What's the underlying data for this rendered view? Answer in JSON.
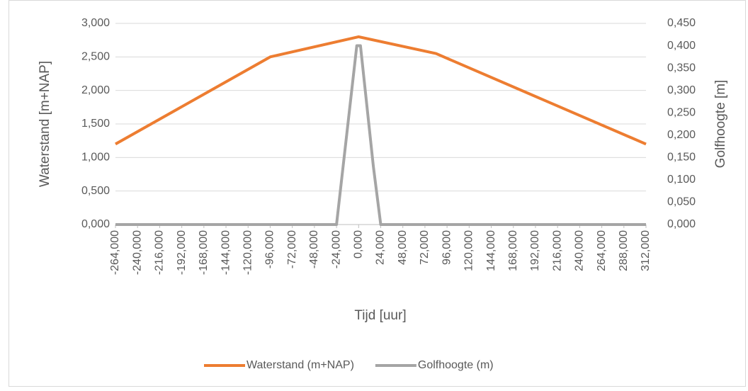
{
  "chart_data": {
    "type": "line",
    "xlabel": "Tijd [uur]",
    "ylabel": "Waterstand [m+NAP]",
    "y2label": "Golfhoogte [m]",
    "xlim": [
      -264,
      312
    ],
    "xticks": [
      {
        "value": -264,
        "label": "-264,000"
      },
      {
        "value": -240,
        "label": "-240,000"
      },
      {
        "value": -216,
        "label": "-216,000"
      },
      {
        "value": -192,
        "label": "-192,000"
      },
      {
        "value": -168,
        "label": "-168,000"
      },
      {
        "value": -144,
        "label": "-144,000"
      },
      {
        "value": -120,
        "label": "-120,000"
      },
      {
        "value": -96,
        "label": "-96,000"
      },
      {
        "value": -72,
        "label": "-72,000"
      },
      {
        "value": -48,
        "label": "-48,000"
      },
      {
        "value": -24,
        "label": "-24,000"
      },
      {
        "value": 0,
        "label": "0,000"
      },
      {
        "value": 24,
        "label": "24,000"
      },
      {
        "value": 48,
        "label": "48,000"
      },
      {
        "value": 72,
        "label": "72,000"
      },
      {
        "value": 96,
        "label": "96,000"
      },
      {
        "value": 120,
        "label": "120,000"
      },
      {
        "value": 144,
        "label": "144,000"
      },
      {
        "value": 168,
        "label": "168,000"
      },
      {
        "value": 192,
        "label": "192,000"
      },
      {
        "value": 216,
        "label": "216,000"
      },
      {
        "value": 240,
        "label": "240,000"
      },
      {
        "value": 264,
        "label": "264,000"
      },
      {
        "value": 288,
        "label": "288,000"
      },
      {
        "value": 312,
        "label": "312,000"
      }
    ],
    "ylim": [
      0,
      3
    ],
    "yticks": [
      {
        "value": 0,
        "label": "0,000"
      },
      {
        "value": 0.5,
        "label": "0,500"
      },
      {
        "value": 1,
        "label": "1,000"
      },
      {
        "value": 1.5,
        "label": "1,500"
      },
      {
        "value": 2,
        "label": "2,000"
      },
      {
        "value": 2.5,
        "label": "2,500"
      },
      {
        "value": 3,
        "label": "3,000"
      }
    ],
    "y2lim": [
      0,
      0.45
    ],
    "y2ticks": [
      {
        "value": 0,
        "label": "0,000"
      },
      {
        "value": 0.05,
        "label": "0,050"
      },
      {
        "value": 0.1,
        "label": "0,100"
      },
      {
        "value": 0.15,
        "label": "0,150"
      },
      {
        "value": 0.2,
        "label": "0,200"
      },
      {
        "value": 0.25,
        "label": "0,250"
      },
      {
        "value": 0.3,
        "label": "0,300"
      },
      {
        "value": 0.35,
        "label": "0,350"
      },
      {
        "value": 0.4,
        "label": "0,400"
      },
      {
        "value": 0.45,
        "label": "0,450"
      }
    ],
    "grid": true,
    "legend": "bottom",
    "series": [
      {
        "name": "Waterstand (m+NAP)",
        "color": "#ed7d31",
        "x": [
          -264,
          -96,
          0,
          84,
          312
        ],
        "values": [
          1.2,
          2.5,
          2.8,
          2.55,
          1.2
        ]
      },
      {
        "name": "Golfhoogte (m)",
        "color": "#a5a5a5",
        "axis": "y2",
        "x": [
          -264,
          -24,
          -2,
          2,
          16,
          24,
          312
        ],
        "values": [
          0,
          0,
          0.4,
          0.4,
          0.13,
          0,
          0
        ]
      }
    ]
  }
}
